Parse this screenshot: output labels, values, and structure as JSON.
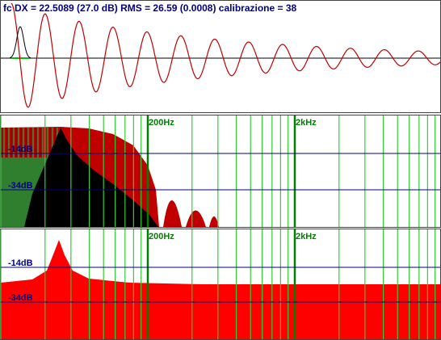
{
  "header": {
    "title": "fc DX = 22.5089 (27.0 dB) RMS = 26.59 (0.0008)  calibrazione = 38"
  },
  "spectrum_panel": {
    "freq_labels": [
      "200Hz",
      "2kHz"
    ],
    "level_labels": [
      "-14dB",
      "-34dB"
    ]
  },
  "response_panel": {
    "freq_labels": [
      "200Hz",
      "2kHz"
    ],
    "level_labels": [
      "-14dB",
      "-34dB"
    ]
  }
}
